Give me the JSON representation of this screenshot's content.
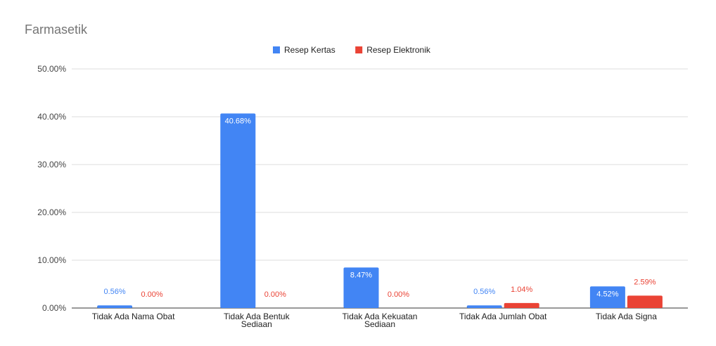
{
  "chart_data": {
    "type": "bar",
    "title": "Farmasetik",
    "xlabel": "",
    "ylabel": "",
    "ylim": [
      0,
      50
    ],
    "yticks": [
      "0.00%",
      "10.00%",
      "20.00%",
      "30.00%",
      "40.00%",
      "50.00%"
    ],
    "grid": true,
    "legend_position": "top-center",
    "categories": [
      [
        "Tidak Ada Nama Obat"
      ],
      [
        "Tidak Ada Bentuk",
        "Sediaan"
      ],
      [
        "Tidak Ada Kekuatan",
        "Sediaan"
      ],
      [
        "Tidak Ada Jumlah Obat"
      ],
      [
        "Tidak Ada Signa"
      ]
    ],
    "series": [
      {
        "name": "Resep Kertas",
        "color": "#4285f4",
        "values": [
          0.56,
          40.68,
          8.47,
          0.56,
          4.52
        ],
        "labels": [
          "0.56%",
          "40.68%",
          "8.47%",
          "0.56%",
          "4.52%"
        ]
      },
      {
        "name": "Resep Elektronik",
        "color": "#ea4335",
        "values": [
          0.0,
          0.0,
          0.0,
          1.04,
          2.59
        ],
        "labels": [
          "0.00%",
          "0.00%",
          "0.00%",
          "1.04%",
          "2.59%"
        ]
      }
    ]
  }
}
